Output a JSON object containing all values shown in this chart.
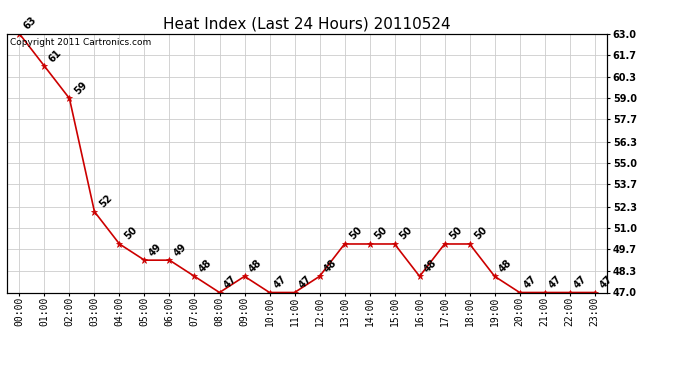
{
  "title": "Heat Index (Last 24 Hours) 20110524",
  "copyright_text": "Copyright 2011 Cartronics.com",
  "hours": [
    0,
    1,
    2,
    3,
    4,
    5,
    6,
    7,
    8,
    9,
    10,
    11,
    12,
    13,
    14,
    15,
    16,
    17,
    18,
    19,
    20,
    21,
    22,
    23
  ],
  "x_labels": [
    "00:00",
    "01:00",
    "02:00",
    "03:00",
    "04:00",
    "05:00",
    "06:00",
    "07:00",
    "08:00",
    "09:00",
    "10:00",
    "11:00",
    "12:00",
    "13:00",
    "14:00",
    "15:00",
    "16:00",
    "17:00",
    "18:00",
    "19:00",
    "20:00",
    "21:00",
    "22:00",
    "23:00"
  ],
  "values": [
    63,
    61,
    59,
    52,
    50,
    49,
    49,
    48,
    47,
    48,
    47,
    47,
    48,
    50,
    50,
    50,
    48,
    50,
    50,
    48,
    47,
    47,
    47,
    47
  ],
  "ylim": [
    47.0,
    63.0
  ],
  "y_ticks_right": [
    47.0,
    48.3,
    49.7,
    51.0,
    52.3,
    53.7,
    55.0,
    56.3,
    57.7,
    59.0,
    60.3,
    61.7,
    63.0
  ],
  "line_color": "#cc0000",
  "marker_color": "#cc0000",
  "bg_color": "#ffffff",
  "grid_color": "#cccccc",
  "title_fontsize": 11,
  "label_fontsize": 7,
  "annotation_fontsize": 7,
  "copyright_fontsize": 6.5
}
